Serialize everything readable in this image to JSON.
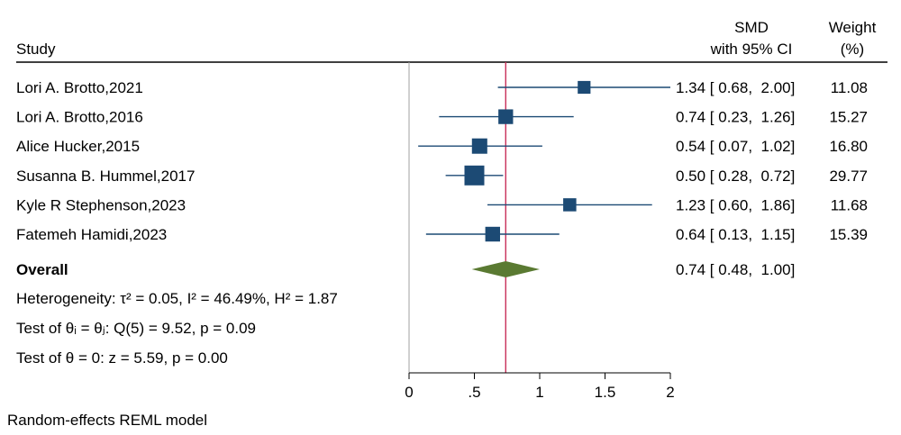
{
  "chart_data": {
    "type": "forest",
    "headers": {
      "study": "Study",
      "smd_line1": "SMD",
      "smd_line2": "with 95% CI",
      "weight_line1": "Weight",
      "weight_line2": "(%)"
    },
    "studies": [
      {
        "name": "Lori A. Brotto,2021",
        "smd": 1.34,
        "lower": 0.68,
        "upper": 2.0,
        "ci_text": "1.34 [ 0.68,  2.00]",
        "weight": 11.08,
        "weight_text": "11.08"
      },
      {
        "name": "Lori A. Brotto,2016",
        "smd": 0.74,
        "lower": 0.23,
        "upper": 1.26,
        "ci_text": "0.74 [ 0.23,  1.26]",
        "weight": 15.27,
        "weight_text": "15.27"
      },
      {
        "name": "Alice Hucker,2015",
        "smd": 0.54,
        "lower": 0.07,
        "upper": 1.02,
        "ci_text": "0.54 [ 0.07,  1.02]",
        "weight": 16.8,
        "weight_text": "16.80"
      },
      {
        "name": "Susanna B. Hummel,2017",
        "smd": 0.5,
        "lower": 0.28,
        "upper": 0.72,
        "ci_text": "0.50 [ 0.28,  0.72]",
        "weight": 29.77,
        "weight_text": "29.77"
      },
      {
        "name": "Kyle R Stephenson,2023",
        "smd": 1.23,
        "lower": 0.6,
        "upper": 1.86,
        "ci_text": "1.23 [ 0.60,  1.86]",
        "weight": 11.68,
        "weight_text": "11.68"
      },
      {
        "name": "Fatemeh Hamidi,2023",
        "smd": 0.64,
        "lower": 0.13,
        "upper": 1.15,
        "ci_text": "0.64 [ 0.13,  1.15]",
        "weight": 15.39,
        "weight_text": "15.39"
      }
    ],
    "overall": {
      "label": "Overall",
      "smd": 0.74,
      "lower": 0.48,
      "upper": 1.0,
      "ci_text": "0.74 [ 0.48,  1.00]"
    },
    "heterogeneity": "Heterogeneity: τ² = 0.05, I² = 46.49%, H² = 1.87",
    "test_equal": "Test of θᵢ = θⱼ: Q(5) = 9.52, p = 0.09",
    "test_zero": "Test of θ = 0: z = 5.59, p = 0.00",
    "xaxis": {
      "range": [
        0,
        2
      ],
      "ticks": [
        0,
        0.5,
        1,
        1.5,
        2
      ],
      "tick_labels": [
        "0",
        ".5",
        "1",
        "1.5",
        "2"
      ]
    },
    "note": "Random-effects REML model",
    "colors": {
      "study_marker": "#1c4a74",
      "ci_line": "#1c4a74",
      "overall_diamond": "#5a7a32",
      "overall_line": "#c9305a",
      "null_line": "#a0a0a0"
    }
  }
}
